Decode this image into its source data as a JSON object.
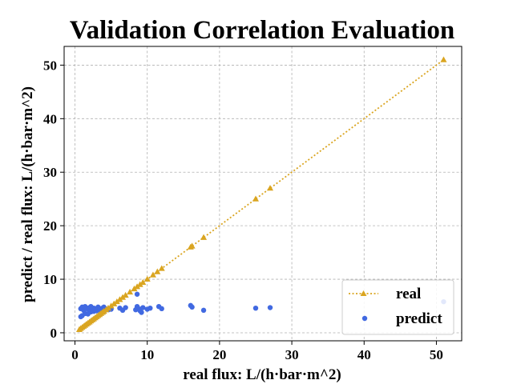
{
  "chart_data": {
    "type": "scatter",
    "title": "Validation Correlation Evaluation",
    "xlabel": "real flux: L/(h·bar·m^2)",
    "ylabel": "predict / real flux: L/(h·bar·m^2)",
    "xlim": [
      -1.5,
      53.5
    ],
    "ylim": [
      -1.5,
      53.5
    ],
    "xticks": [
      0,
      10,
      20,
      30,
      40,
      50
    ],
    "yticks": [
      0,
      10,
      20,
      30,
      40,
      50
    ],
    "grid": true,
    "legend_position": "lower-right",
    "series": [
      {
        "name": "real",
        "style": "dotted-line-triangle-markers",
        "color": "#DAA520",
        "x": [
          0.6,
          0.8,
          1.0,
          1.2,
          1.4,
          1.6,
          1.8,
          2.0,
          2.2,
          2.4,
          2.6,
          2.8,
          3.0,
          3.2,
          3.4,
          3.6,
          3.8,
          4.0,
          4.3,
          4.6,
          5.0,
          5.4,
          5.8,
          6.2,
          6.6,
          7.0,
          7.6,
          8.2,
          8.6,
          9.0,
          9.4,
          10.0,
          10.8,
          11.4,
          12.0,
          16.0,
          16.2,
          17.8,
          25.0,
          27.0,
          51.0
        ],
        "y": [
          0.6,
          0.8,
          1.0,
          1.2,
          1.4,
          1.6,
          1.8,
          2.0,
          2.2,
          2.4,
          2.6,
          2.8,
          3.0,
          3.2,
          3.4,
          3.6,
          3.8,
          4.0,
          4.3,
          4.6,
          5.0,
          5.4,
          5.8,
          6.2,
          6.6,
          7.0,
          7.6,
          8.2,
          8.6,
          9.0,
          9.4,
          10.0,
          10.8,
          11.4,
          12.0,
          16.0,
          16.2,
          17.8,
          25.0,
          27.0,
          51.0
        ]
      },
      {
        "name": "predict",
        "style": "scatter-dots",
        "color": "#4169E1",
        "x": [
          0.8,
          1.0,
          1.2,
          1.4,
          1.6,
          1.8,
          2.0,
          2.2,
          2.4,
          2.6,
          2.8,
          3.0,
          3.2,
          3.4,
          3.6,
          3.8,
          4.0,
          4.2,
          4.6,
          5.0,
          6.2,
          6.6,
          7.0,
          8.4,
          8.6,
          8.8,
          9.0,
          9.4,
          10.0,
          10.4,
          11.6,
          12.0,
          16.0,
          16.2,
          17.8,
          25.0,
          27.0,
          51.0,
          1.0,
          1.4,
          2.2,
          3.6,
          0.8,
          1.8,
          2.6,
          4.0,
          8.6,
          9.2
        ],
        "y": [
          4.5,
          4.8,
          4.2,
          4.9,
          4.6,
          4.4,
          4.7,
          4.9,
          4.3,
          4.6,
          4.5,
          4.1,
          4.8,
          4.4,
          4.2,
          4.6,
          3.9,
          4.5,
          4.3,
          4.4,
          4.6,
          4.2,
          4.7,
          4.3,
          4.9,
          4.5,
          4.1,
          4.7,
          4.4,
          4.6,
          4.9,
          4.5,
          5.1,
          4.8,
          4.2,
          4.6,
          4.7,
          5.8,
          3.2,
          3.6,
          3.9,
          4.0,
          3.0,
          3.5,
          4.0,
          4.8,
          7.2,
          3.8
        ]
      }
    ]
  }
}
